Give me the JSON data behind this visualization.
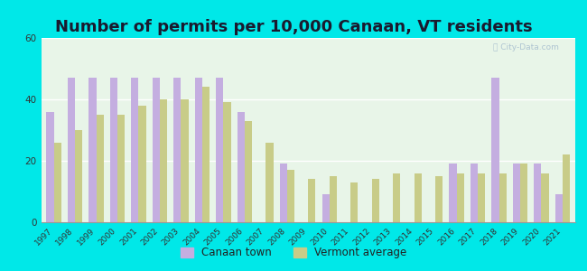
{
  "title": "Number of permits per 10,000 Canaan, VT residents",
  "years": [
    1997,
    1998,
    1999,
    2000,
    2001,
    2002,
    2003,
    2004,
    2005,
    2006,
    2007,
    2008,
    2009,
    2010,
    2011,
    2012,
    2013,
    2014,
    2015,
    2016,
    2017,
    2018,
    2019,
    2020,
    2021
  ],
  "canaan": [
    36,
    47,
    47,
    47,
    47,
    47,
    47,
    47,
    47,
    36,
    0,
    19,
    0,
    9,
    0,
    0,
    0,
    0,
    0,
    19,
    19,
    47,
    19,
    19,
    9
  ],
  "vermont": [
    26,
    30,
    35,
    35,
    38,
    40,
    40,
    44,
    39,
    33,
    26,
    17,
    14,
    15,
    13,
    14,
    16,
    16,
    15,
    16,
    16,
    16,
    19,
    16,
    22
  ],
  "canaan_color": "#c4aee0",
  "vermont_color": "#c8cc88",
  "bg_color": "#e8f5e8",
  "outer_bg": "#00e8e8",
  "ylim": [
    0,
    60
  ],
  "yticks": [
    0,
    20,
    40,
    60
  ],
  "legend_canaan": "Canaan town",
  "legend_vermont": "Vermont average",
  "title_fontsize": 13,
  "title_color": "#1a1a2e",
  "bar_width": 0.35
}
